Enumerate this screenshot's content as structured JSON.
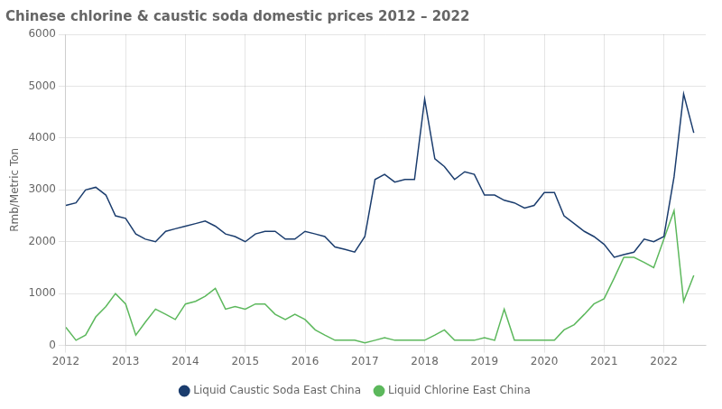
{
  "chart_data": {
    "type": "line",
    "title": "Chinese chlorine & caustic soda domestic prices 2012 – 2022",
    "ylabel": "Rmb/Metric Ton",
    "xlim": [
      2012,
      2022.7
    ],
    "xticks": [
      2012,
      2013,
      2014,
      2015,
      2016,
      2017,
      2018,
      2019,
      2020,
      2021,
      2022
    ],
    "ylim": [
      0,
      6000
    ],
    "yticks": [
      0,
      1000,
      2000,
      3000,
      4000,
      5000,
      6000
    ],
    "grid": true,
    "legend": "bottom",
    "x": [
      2012.0,
      2012.17,
      2012.33,
      2012.5,
      2012.67,
      2012.83,
      2013.0,
      2013.17,
      2013.33,
      2013.5,
      2013.67,
      2013.83,
      2014.0,
      2014.17,
      2014.33,
      2014.5,
      2014.67,
      2014.83,
      2015.0,
      2015.17,
      2015.33,
      2015.5,
      2015.67,
      2015.83,
      2016.0,
      2016.17,
      2016.33,
      2016.5,
      2016.67,
      2016.83,
      2017.0,
      2017.17,
      2017.33,
      2017.5,
      2017.67,
      2017.83,
      2018.0,
      2018.17,
      2018.33,
      2018.5,
      2018.67,
      2018.83,
      2019.0,
      2019.17,
      2019.33,
      2019.5,
      2019.67,
      2019.83,
      2020.0,
      2020.17,
      2020.33,
      2020.5,
      2020.67,
      2020.83,
      2021.0,
      2021.17,
      2021.33,
      2021.5,
      2021.67,
      2021.83,
      2022.0,
      2022.17,
      2022.33,
      2022.5
    ],
    "series": [
      {
        "name": "Liquid Caustic Soda East China",
        "color": "#1b3d6e",
        "values": [
          2700,
          2750,
          3000,
          3050,
          2900,
          2500,
          2450,
          2150,
          2050,
          2000,
          2200,
          2250,
          2300,
          2350,
          2400,
          2300,
          2150,
          2100,
          2000,
          2150,
          2200,
          2200,
          2050,
          2050,
          2200,
          2150,
          2100,
          1900,
          1850,
          1800,
          2100,
          3200,
          3300,
          3150,
          3200,
          3200,
          4750,
          3600,
          3450,
          3200,
          3350,
          3300,
          2900,
          2900,
          2800,
          2750,
          2650,
          2700,
          2950,
          2950,
          2500,
          2350,
          2200,
          2100,
          1950,
          1700,
          1750,
          1800,
          2050,
          2000,
          2100,
          3250,
          4850,
          4100
        ]
      },
      {
        "name": "Liquid Chlorine East China",
        "color": "#5cb85c",
        "values": [
          350,
          100,
          200,
          550,
          750,
          1000,
          800,
          200,
          450,
          700,
          600,
          500,
          800,
          850,
          950,
          1100,
          700,
          750,
          700,
          800,
          800,
          600,
          500,
          600,
          500,
          300,
          200,
          100,
          100,
          100,
          50,
          100,
          150,
          100,
          100,
          100,
          100,
          200,
          300,
          100,
          100,
          100,
          150,
          100,
          700,
          100,
          100,
          100,
          100,
          100,
          300,
          400,
          600,
          800,
          900,
          1300,
          1700,
          1700,
          1600,
          1500,
          2050,
          2600,
          850,
          1350
        ]
      }
    ]
  }
}
